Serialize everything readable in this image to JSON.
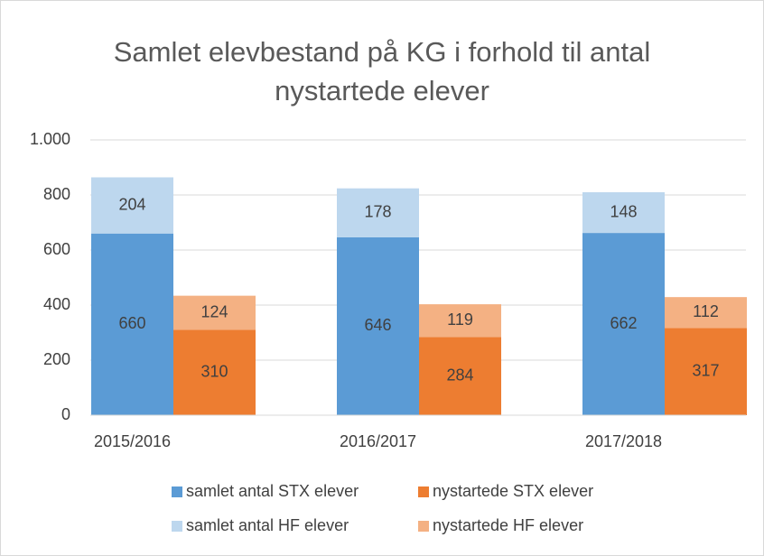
{
  "chart_data": {
    "type": "stacked-grouped-bar",
    "title": "Samlet elevbestand på KG i forhold til antal nystartede elever",
    "categories": [
      "2015/2016",
      "2016/2017",
      "2017/2018"
    ],
    "series": [
      {
        "name": "samlet antal STX elever",
        "color": "#5b9bd5",
        "stack": "samlet",
        "values": [
          660,
          646,
          662
        ]
      },
      {
        "name": "nystartede STX elever",
        "color": "#ed7d31",
        "stack": "nystartede",
        "values": [
          310,
          284,
          317
        ]
      },
      {
        "name": "samlet antal HF elever",
        "color": "#bdd7ee",
        "stack": "samlet",
        "values": [
          204,
          178,
          148
        ]
      },
      {
        "name": "nystartede HF elever",
        "color": "#f4b183",
        "stack": "nystartede",
        "values": [
          124,
          119,
          112
        ]
      }
    ],
    "ylim": [
      0,
      1000
    ],
    "yticks": [
      0,
      200,
      400,
      600,
      800,
      {
        "value": 1000,
        "label": "1.000"
      }
    ],
    "grid": true,
    "legend": "bottom"
  }
}
